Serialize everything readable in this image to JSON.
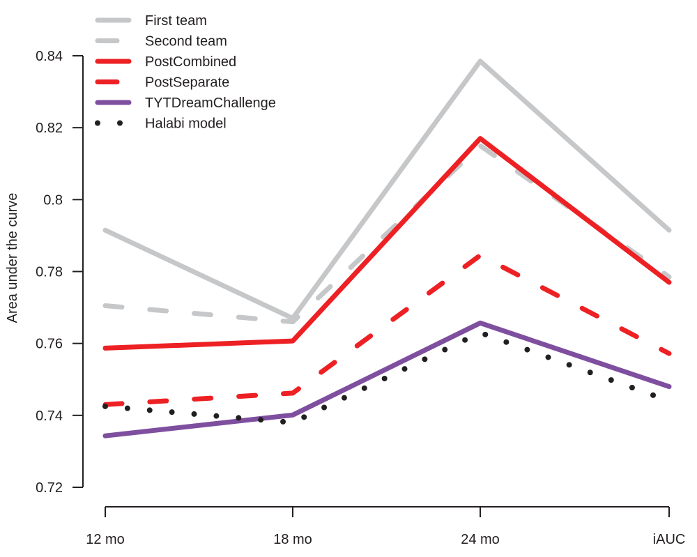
{
  "chart_data": {
    "type": "line",
    "title": "",
    "xlabel": "",
    "ylabel": "Area under the curve",
    "categories": [
      "12 mo",
      "18 mo",
      "24 mo",
      "iAUC"
    ],
    "ylim": [
      0.72,
      0.84
    ],
    "yticks": [
      0.72,
      0.74,
      0.76,
      0.78,
      0.8,
      0.82,
      0.84
    ],
    "ytick_labels": [
      "0.72",
      "0.74",
      "0.76",
      "0.78",
      "0.8",
      "0.82",
      "0.84"
    ],
    "grid": false,
    "legend_position": "top-left",
    "series": [
      {
        "name": "First team",
        "style": "solid",
        "color": "#c6c7c9",
        "values": [
          0.7915,
          0.767,
          0.8385,
          0.7915
        ]
      },
      {
        "name": "Second team",
        "style": "dashed",
        "color": "#c6c7c9",
        "values": [
          0.7705,
          0.766,
          0.815,
          0.7785
        ]
      },
      {
        "name": "PostCombined",
        "style": "solid",
        "color": "#ed2024",
        "values": [
          0.7587,
          0.7607,
          0.817,
          0.777
        ]
      },
      {
        "name": "PostSeparate",
        "style": "dashed",
        "color": "#ed2024",
        "values": [
          0.743,
          0.7462,
          0.7845,
          0.7572
        ]
      },
      {
        "name": "TYTDreamChallenge",
        "style": "solid",
        "color": "#7f4f9f",
        "values": [
          0.7343,
          0.7401,
          0.7657,
          0.748
        ]
      },
      {
        "name": "Halabi model",
        "style": "dotted",
        "color": "#231f20",
        "values": [
          0.7425,
          0.738,
          0.763,
          0.744
        ]
      }
    ]
  }
}
